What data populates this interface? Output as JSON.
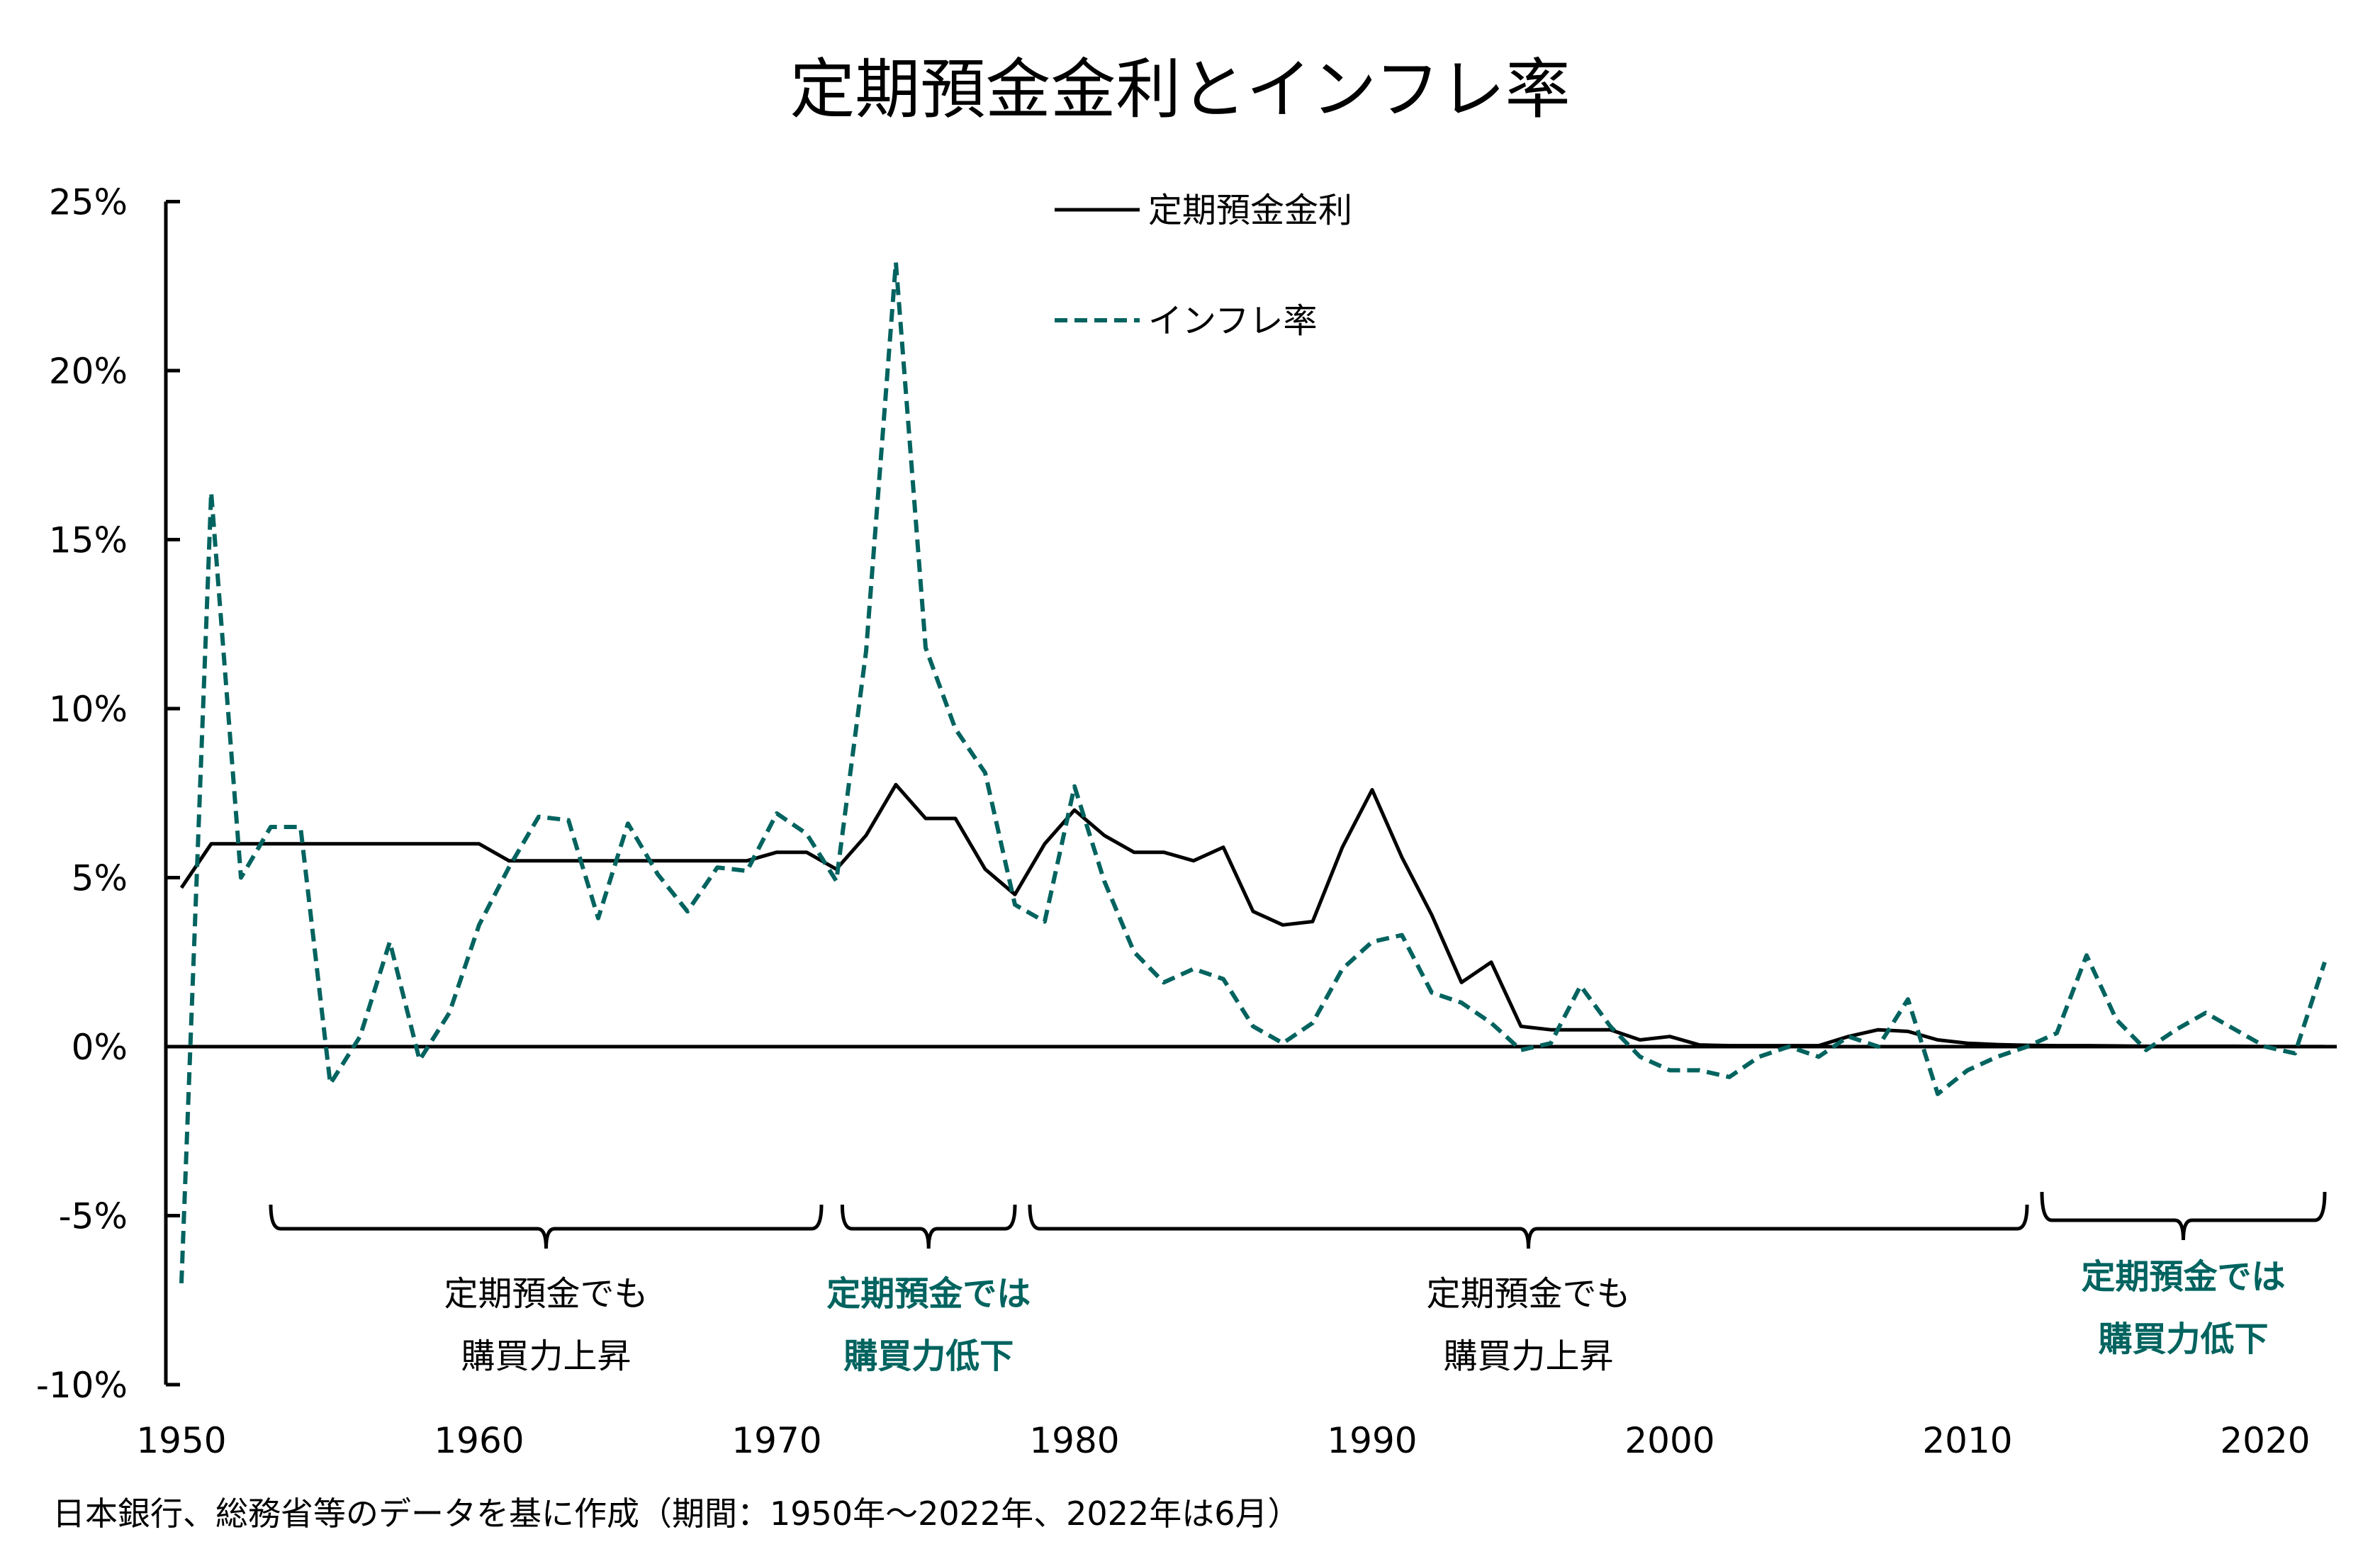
{
  "chart_data": {
    "type": "line",
    "title": "定期預金金利とインフレ率",
    "xlabel": "",
    "ylabel": "",
    "xlim": [
      1950,
      2022
    ],
    "ylim": [
      -10,
      25
    ],
    "x_ticks": [
      1950,
      1960,
      1970,
      1980,
      1990,
      2000,
      2010,
      2020
    ],
    "y_ticks": [
      25,
      20,
      15,
      10,
      5,
      0,
      -5,
      -10
    ],
    "y_tick_labels": [
      "25%",
      "20%",
      "15%",
      "10%",
      "5%",
      "0%",
      "-5%",
      "-10%"
    ],
    "grid": false,
    "legend_position": "top-center",
    "colors": {
      "deposit": "#000000",
      "inflation": "#00635f",
      "highlight": "#00635f"
    },
    "x": [
      1950,
      1951,
      1952,
      1953,
      1954,
      1955,
      1956,
      1957,
      1958,
      1959,
      1960,
      1961,
      1962,
      1963,
      1964,
      1965,
      1966,
      1967,
      1968,
      1969,
      1970,
      1971,
      1972,
      1973,
      1974,
      1975,
      1976,
      1977,
      1978,
      1979,
      1980,
      1981,
      1982,
      1983,
      1984,
      1985,
      1986,
      1987,
      1988,
      1989,
      1990,
      1991,
      1992,
      1993,
      1994,
      1995,
      1996,
      1997,
      1998,
      1999,
      2000,
      2001,
      2002,
      2003,
      2004,
      2005,
      2006,
      2007,
      2008,
      2009,
      2010,
      2011,
      2012,
      2013,
      2014,
      2015,
      2016,
      2017,
      2018,
      2019,
      2020,
      2021,
      2022
    ],
    "series": [
      {
        "name": "定期預金金利",
        "style": "solid",
        "values": [
          4.7,
          6.0,
          6.0,
          6.0,
          6.0,
          6.0,
          6.0,
          6.0,
          6.0,
          6.0,
          6.0,
          5.5,
          5.5,
          5.5,
          5.5,
          5.5,
          5.5,
          5.5,
          5.5,
          5.5,
          5.75,
          5.75,
          5.25,
          6.25,
          7.75,
          6.75,
          6.75,
          5.25,
          4.5,
          6.0,
          7.0,
          6.25,
          5.75,
          5.75,
          5.5,
          5.9,
          4.0,
          3.6,
          3.7,
          5.9,
          7.6,
          5.6,
          3.9,
          1.9,
          2.5,
          0.6,
          0.5,
          0.5,
          0.5,
          0.2,
          0.3,
          0.05,
          0.03,
          0.03,
          0.03,
          0.03,
          0.3,
          0.5,
          0.45,
          0.2,
          0.1,
          0.06,
          0.04,
          0.03,
          0.03,
          0.02,
          0.01,
          0.01,
          0.01,
          0.01,
          0.002,
          0.002,
          0.002
        ]
      },
      {
        "name": "インフレ率",
        "style": "dashed",
        "values": [
          -7.0,
          16.4,
          5.0,
          6.5,
          6.5,
          -1.1,
          0.3,
          3.1,
          -0.4,
          1.0,
          3.6,
          5.3,
          6.8,
          6.7,
          3.8,
          6.6,
          5.1,
          4.0,
          5.3,
          5.2,
          6.9,
          6.3,
          4.9,
          11.7,
          23.2,
          11.8,
          9.4,
          8.1,
          4.2,
          3.7,
          7.7,
          4.9,
          2.8,
          1.9,
          2.3,
          2.0,
          0.6,
          0.1,
          0.7,
          2.3,
          3.1,
          3.3,
          1.6,
          1.3,
          0.7,
          -0.1,
          0.1,
          1.8,
          0.6,
          -0.3,
          -0.7,
          -0.7,
          -0.9,
          -0.3,
          0.0,
          -0.3,
          0.3,
          0.0,
          1.4,
          -1.4,
          -0.7,
          -0.3,
          0.0,
          0.4,
          2.7,
          0.8,
          -0.1,
          0.5,
          1.0,
          0.5,
          0.0,
          -0.2,
          2.5
        ]
      }
    ],
    "annotations": [
      {
        "from": 1953,
        "to": 1971.5,
        "lines": [
          "定期預金でも",
          "購買力上昇"
        ],
        "highlight": false
      },
      {
        "from": 1972.2,
        "to": 1978.0,
        "lines": [
          "定期預金では",
          "購買力低下"
        ],
        "highlight": true
      },
      {
        "from": 1978.5,
        "to": 2012.0,
        "lines": [
          "定期預金でも",
          "購買力上昇"
        ],
        "highlight": false
      },
      {
        "from": 2012.5,
        "to": 2022.0,
        "lines": [
          "定期預金では",
          "購買力低下"
        ],
        "highlight": true
      }
    ],
    "source": "日本銀行、総務省等のデータを基に作成（期間：1950年～2022年、2022年は6月）"
  }
}
